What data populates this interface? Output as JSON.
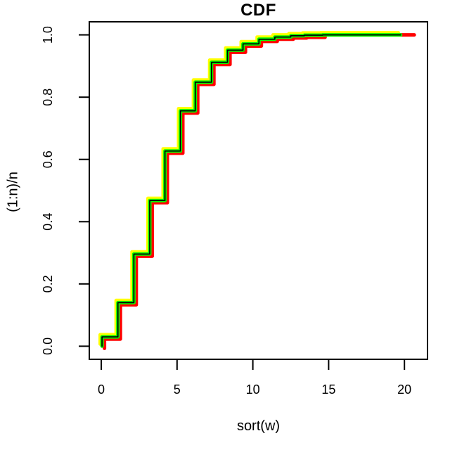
{
  "chart_data": {
    "type": "line",
    "subtype": "ecdf-step-functions",
    "title": "CDF",
    "xlabel": "sort(w)",
    "ylabel": "(1:n)/n",
    "x_ticks": [
      0,
      5,
      10,
      15,
      20
    ],
    "y_ticks": [
      "0.0",
      "0.2",
      "0.4",
      "0.6",
      "0.8",
      "1.0"
    ],
    "xlim": [
      -0.79,
      21.52
    ],
    "ylim": [
      -0.042,
      1.042
    ],
    "grid": false,
    "legend": "none",
    "step_x": [
      0.05,
      1.1,
      2.15,
      3.2,
      4.2,
      5.22,
      6.2,
      7.27,
      8.33,
      9.35,
      10.4,
      11.45,
      12.5,
      13.4,
      14.6
    ],
    "cum_y": [
      0.03,
      0.14,
      0.296,
      0.468,
      0.627,
      0.756,
      0.848,
      0.912,
      0.951,
      0.971,
      0.986,
      0.993,
      0.997,
      0.999,
      1.0
    ],
    "series": [
      {
        "name": "cdf-red",
        "color": "#ff0000",
        "dx": 0.16,
        "dy": -0.007,
        "x_end": 20.65,
        "stroke_width": 5,
        "clamp_top": true
      },
      {
        "name": "cdf-yellow",
        "color": "#ffff00",
        "dx": -0.12,
        "dy": 0.007,
        "x_end": 19.6,
        "stroke_width": 5,
        "clamp_top": false
      },
      {
        "name": "cdf-green",
        "color": "#00ff00",
        "dx": 0,
        "dy": 0,
        "x_end": 19.75,
        "stroke_width": 5,
        "clamp_top": false
      },
      {
        "name": "cdf-core-black",
        "color": "#000000",
        "dx": 0,
        "dy": 0,
        "x_end": 19.75,
        "stroke_width": 1.7,
        "clamp_top": false
      }
    ]
  }
}
